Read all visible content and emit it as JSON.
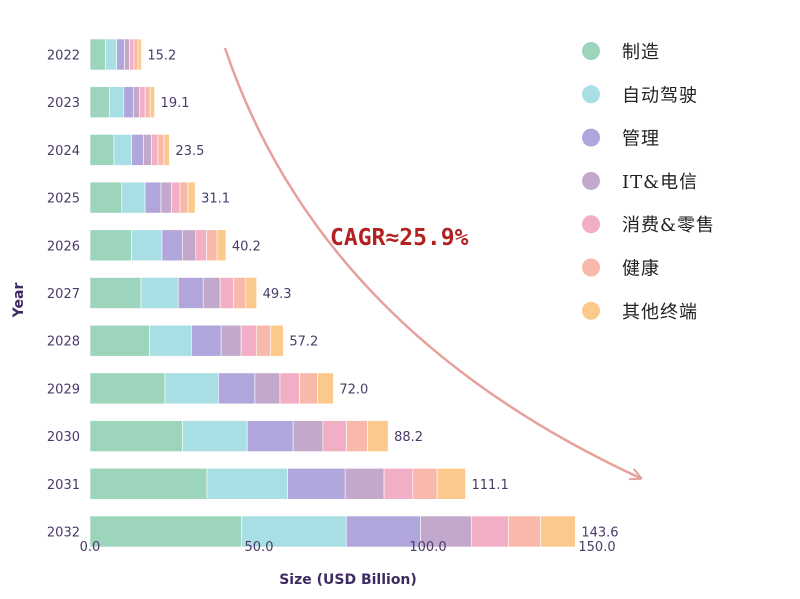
{
  "chart_data": {
    "type": "bar",
    "orientation": "horizontal",
    "stacked": true,
    "categories": [
      "2022",
      "2023",
      "2024",
      "2025",
      "2026",
      "2027",
      "2028",
      "2029",
      "2030",
      "2031",
      "2032"
    ],
    "totals": [
      "15.2",
      "19.1",
      "23.5",
      "31.1",
      "40.2",
      "49.3",
      "57.2",
      "72.0",
      "88.2",
      "111.1",
      "143.6"
    ],
    "series": [
      {
        "name": "制造",
        "color": "#9dd4bc",
        "values": [
          4.6,
          5.7,
          7.1,
          9.4,
          12.3,
          15.1,
          17.6,
          22.2,
          27.4,
          34.6,
          44.8
        ]
      },
      {
        "name": "自动驾驶",
        "color": "#a8dfe4",
        "values": [
          3.3,
          4.3,
          5.2,
          6.9,
          9.0,
          11.0,
          12.4,
          15.8,
          19.1,
          23.9,
          31.0
        ]
      },
      {
        "name": "管理",
        "color": "#b0a6db",
        "values": [
          2.3,
          2.8,
          3.5,
          4.7,
          6.0,
          7.4,
          8.8,
          10.8,
          13.6,
          17.0,
          22.0
        ]
      },
      {
        "name": "IT&电信",
        "color": "#c2a9cc",
        "values": [
          1.5,
          1.9,
          2.4,
          3.1,
          4.0,
          5.0,
          5.9,
          7.4,
          8.8,
          11.5,
          15.0
        ]
      },
      {
        "name": "消费&零售",
        "color": "#f2aec4",
        "values": [
          1.3,
          1.6,
          1.9,
          2.5,
          3.2,
          3.9,
          4.5,
          5.8,
          7.0,
          8.5,
          11.0
        ]
      },
      {
        "name": "健康",
        "color": "#f8b9aa",
        "values": [
          1.2,
          1.5,
          1.8,
          2.4,
          3.1,
          3.7,
          4.2,
          5.3,
          6.2,
          7.2,
          9.5
        ]
      },
      {
        "name": "其他终端",
        "color": "#fbc98c",
        "values": [
          1.0,
          1.3,
          1.6,
          2.1,
          2.6,
          3.2,
          3.8,
          4.7,
          6.1,
          8.4,
          10.3
        ]
      }
    ],
    "xlabel": "Size (USD Billion)",
    "ylabel": "Year",
    "xlim": [
      0,
      150
    ],
    "xticks": [
      "0.0",
      "50.0",
      "100.0",
      "150.0"
    ],
    "grid": false,
    "legend_position": "top-right",
    "annotation": "CAGR≈25.9%"
  }
}
